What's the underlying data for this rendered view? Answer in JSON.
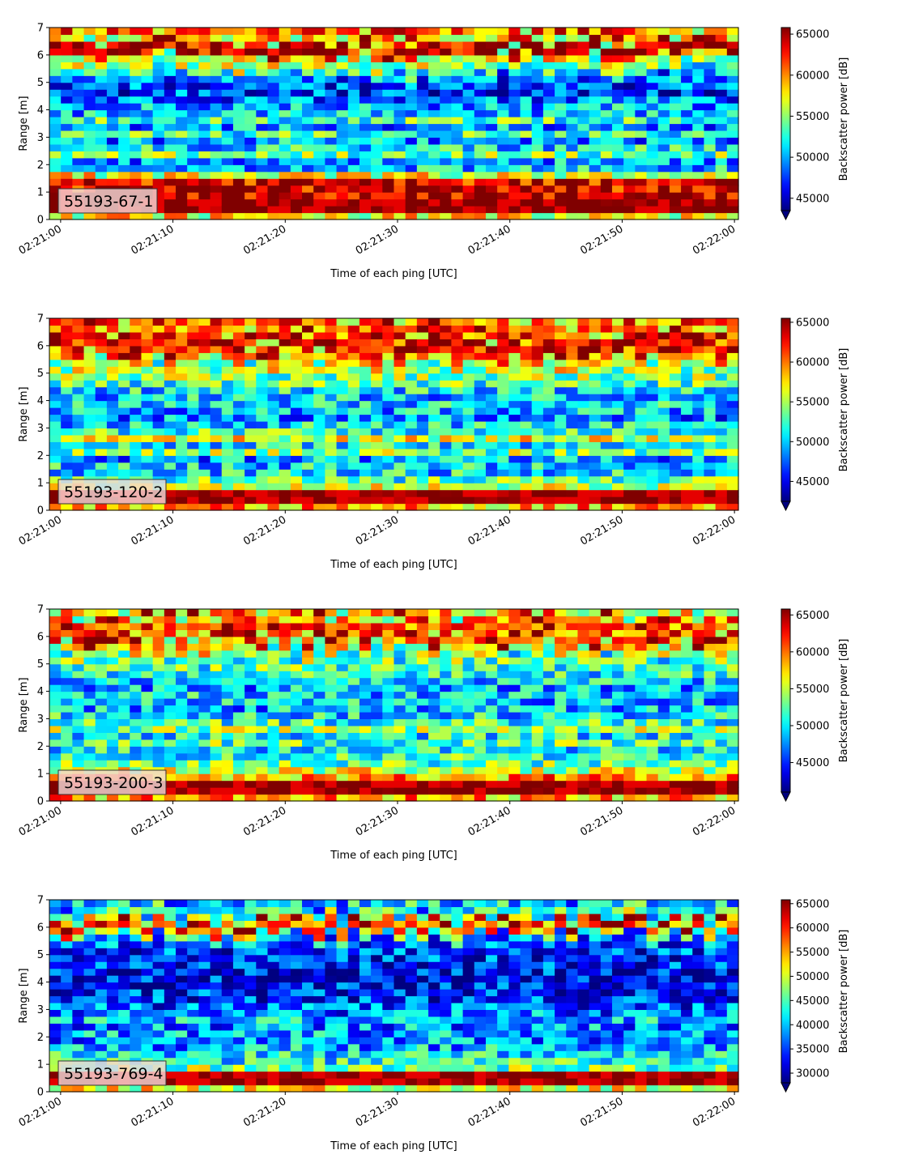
{
  "chart_data": [
    {
      "type": "heatmap",
      "label": "55193-67-1",
      "xlabel": "Time of each ping [UTC]",
      "ylabel": "Range [m]",
      "colorbar_label": "Backscatter power [dB]",
      "colormap": "jet",
      "x_ticks": [
        "02:21:00",
        "02:21:10",
        "02:21:20",
        "02:21:30",
        "02:21:40",
        "02:21:50",
        "02:22:00"
      ],
      "xlim": [
        "02:20:59",
        "02:22:00"
      ],
      "y_ticks": [
        0,
        1,
        2,
        3,
        4,
        5,
        6,
        7
      ],
      "ylim": [
        0,
        7
      ],
      "colorbar_ticks": [
        45000,
        50000,
        55000,
        60000,
        65000
      ],
      "colorbar_range": [
        43500,
        65800
      ],
      "profile_levels": [
        0.62,
        1.0,
        1.0,
        0.96,
        0.92,
        0.92,
        0.6,
        0.32,
        0.28,
        0.48,
        0.36,
        0.28,
        0.42,
        0.28,
        0.44,
        0.32,
        0.3,
        0.24,
        0.18,
        0.2,
        0.24,
        0.38,
        0.54,
        0.58,
        0.93,
        0.92,
        0.6,
        0.78
      ]
    },
    {
      "type": "heatmap",
      "label": "55193-120-2",
      "xlabel": "Time of each ping [UTC]",
      "ylabel": "Range [m]",
      "colorbar_label": "Backscatter power [dB]",
      "colormap": "jet",
      "x_ticks": [
        "02:21:00",
        "02:21:10",
        "02:21:20",
        "02:21:30",
        "02:21:40",
        "02:21:50",
        "02:22:00"
      ],
      "xlim": [
        "02:20:59",
        "02:22:00"
      ],
      "y_ticks": [
        0,
        1,
        2,
        3,
        4,
        5,
        6,
        7
      ],
      "ylim": [
        0,
        7
      ],
      "colorbar_ticks": [
        45000,
        50000,
        55000,
        60000,
        65000
      ],
      "colorbar_range": [
        42500,
        65500
      ],
      "profile_levels": [
        0.7,
        0.98,
        0.98,
        0.56,
        0.44,
        0.36,
        0.34,
        0.28,
        0.5,
        0.36,
        0.6,
        0.42,
        0.34,
        0.26,
        0.3,
        0.34,
        0.32,
        0.36,
        0.44,
        0.5,
        0.48,
        0.6,
        0.7,
        0.92,
        0.95,
        0.7,
        0.86,
        0.7
      ]
    },
    {
      "type": "heatmap",
      "label": "55193-200-3",
      "xlabel": "Time of each ping [UTC]",
      "ylabel": "Range [m]",
      "colorbar_label": "Backscatter power [dB]",
      "colormap": "jet",
      "x_ticks": [
        "02:21:00",
        "02:21:10",
        "02:21:20",
        "02:21:30",
        "02:21:40",
        "02:21:50",
        "02:22:00"
      ],
      "xlim": [
        "02:20:59",
        "02:22:00"
      ],
      "y_ticks": [
        0,
        1,
        2,
        3,
        4,
        5,
        6,
        7
      ],
      "ylim": [
        0,
        7
      ],
      "colorbar_ticks": [
        45000,
        50000,
        55000,
        60000,
        65000
      ],
      "colorbar_range": [
        41000,
        65800
      ],
      "profile_levels": [
        0.7,
        0.98,
        0.96,
        0.72,
        0.58,
        0.46,
        0.42,
        0.38,
        0.46,
        0.38,
        0.52,
        0.42,
        0.36,
        0.3,
        0.32,
        0.34,
        0.3,
        0.34,
        0.38,
        0.44,
        0.42,
        0.52,
        0.6,
        0.86,
        0.92,
        0.7,
        0.86,
        0.58
      ]
    },
    {
      "type": "heatmap",
      "label": "55193-769-4",
      "xlabel": "Time of each ping [UTC]",
      "ylabel": "Range [m]",
      "colorbar_label": "Backscatter power [dB]",
      "colormap": "jet",
      "x_ticks": [
        "02:21:00",
        "02:21:10",
        "02:21:20",
        "02:21:30",
        "02:21:40",
        "02:21:50",
        "02:22:00"
      ],
      "xlim": [
        "02:20:59",
        "02:22:00"
      ],
      "y_ticks": [
        0,
        1,
        2,
        3,
        4,
        5,
        6,
        7
      ],
      "ylim": [
        0,
        7
      ],
      "colorbar_ticks": [
        30000,
        35000,
        40000,
        45000,
        50000,
        55000,
        60000,
        65000
      ],
      "colorbar_range": [
        28000,
        65800
      ],
      "profile_levels": [
        0.6,
        0.98,
        0.96,
        0.5,
        0.4,
        0.36,
        0.3,
        0.26,
        0.28,
        0.26,
        0.3,
        0.24,
        0.2,
        0.16,
        0.15,
        0.14,
        0.12,
        0.13,
        0.15,
        0.16,
        0.18,
        0.22,
        0.3,
        0.72,
        0.88,
        0.5,
        0.38,
        0.3
      ]
    }
  ]
}
